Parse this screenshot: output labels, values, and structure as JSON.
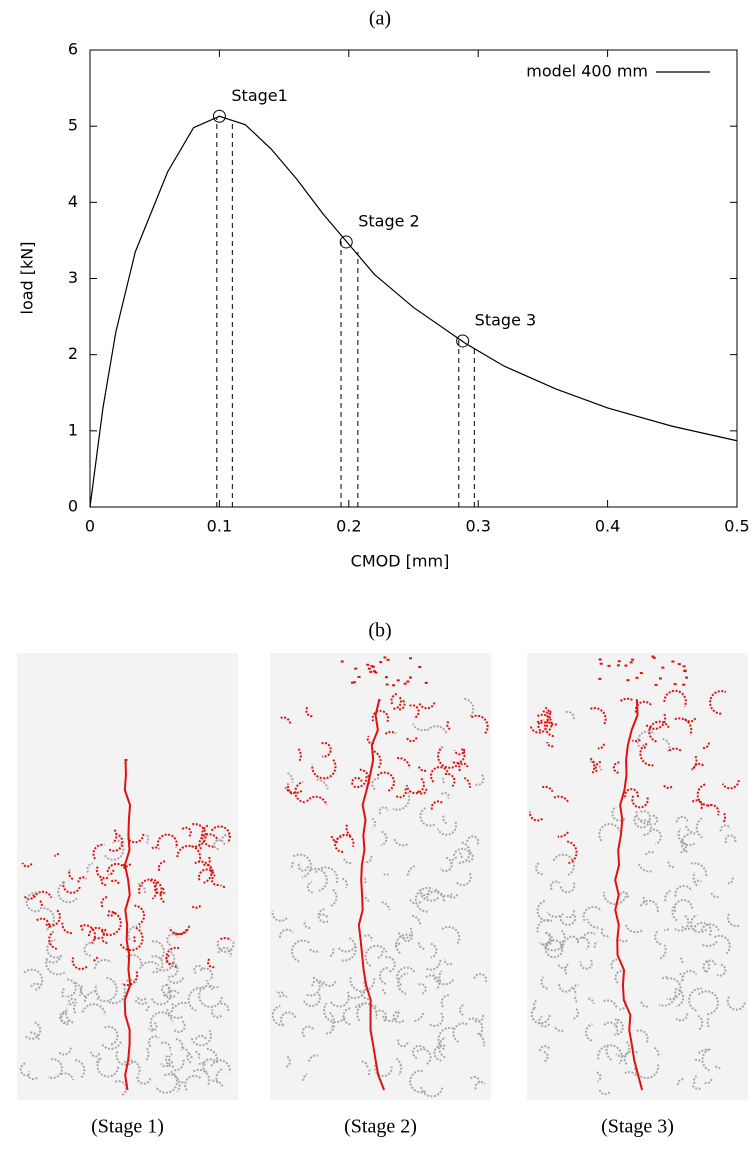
{
  "chart_data": {
    "type": "line",
    "title": "(a)",
    "x_label": "CMOD [mm]",
    "y_label": "load [kN]",
    "xlim": [
      0,
      0.5
    ],
    "ylim": [
      0,
      6
    ],
    "xticks": [
      0,
      0.1,
      0.2,
      0.3,
      0.4,
      0.5
    ],
    "yticks": [
      0,
      1,
      2,
      3,
      4,
      5,
      6
    ],
    "legend": "upper right",
    "series": [
      {
        "name": "model 400 mm",
        "color": "#000000",
        "x": [
          0,
          0.01,
          0.02,
          0.035,
          0.06,
          0.08,
          0.1,
          0.12,
          0.14,
          0.16,
          0.18,
          0.2,
          0.22,
          0.25,
          0.29,
          0.32,
          0.36,
          0.4,
          0.45,
          0.5
        ],
        "values": [
          0,
          1.3,
          2.3,
          3.35,
          4.4,
          4.98,
          5.13,
          5.02,
          4.7,
          4.3,
          3.85,
          3.45,
          3.05,
          2.62,
          2.15,
          1.85,
          1.55,
          1.3,
          1.06,
          0.87
        ]
      }
    ],
    "markers": [
      {
        "label": "Stage1",
        "x": 0.1,
        "y": 5.13
      },
      {
        "label": "Stage 2",
        "x": 0.198,
        "y": 3.48
      },
      {
        "label": "Stage 3",
        "x": 0.288,
        "y": 2.18
      }
    ],
    "dashed_lines": [
      {
        "x": 0.098,
        "y": 5.12
      },
      {
        "x": 0.11,
        "y": 5.08
      },
      {
        "x": 0.194,
        "y": 3.5
      },
      {
        "x": 0.207,
        "y": 3.35
      },
      {
        "x": 0.285,
        "y": 2.2
      },
      {
        "x": 0.297,
        "y": 2.1
      }
    ]
  },
  "panel_b": {
    "title": "(b)",
    "captions": [
      "(Stage 1)",
      "(Stage 2)",
      "(Stage 3)"
    ]
  }
}
